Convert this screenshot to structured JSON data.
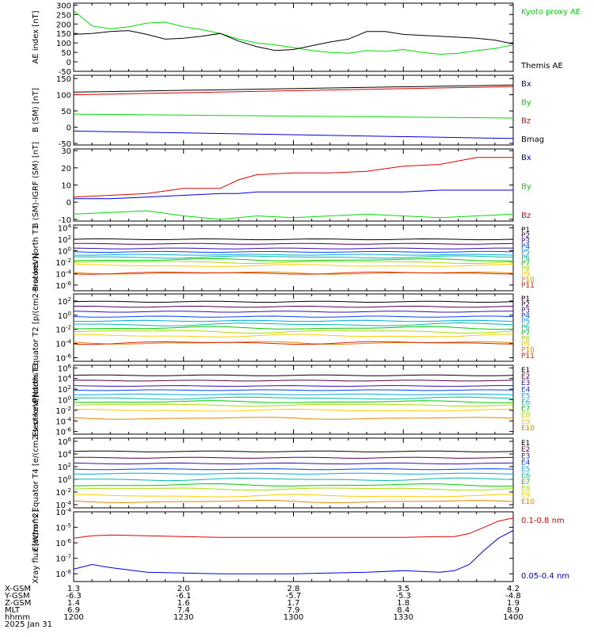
{
  "colors": {
    "black": "#000000",
    "green": "#00dd00",
    "red": "#dd0000",
    "blue": "#0000dd",
    "p_series": [
      "#000000",
      "#550055",
      "#3311aa",
      "#0044ff",
      "#00aadd",
      "#00bbaa",
      "#00cc00",
      "#aadd00",
      "#ffcc00",
      "#dd8800",
      "#dd2200",
      "#880000"
    ],
    "xray_red": "#dd0000",
    "xray_blue": "#0000dd"
  },
  "time_axis": {
    "x": [
      "1200",
      "1230",
      "1300",
      "1330",
      "1400"
    ],
    "footer": {
      "labels": [
        "X-GSM",
        "Y-GSM",
        "Z-GSM",
        "MLT",
        "hhmm",
        "2025 Jan 31"
      ],
      "x_gsm": [
        "1.3",
        "2.0",
        "2.8",
        "3.5",
        "4.2"
      ],
      "y_gsm": [
        "-6.3",
        "-6.1",
        "-5.7",
        "-5.3",
        "-4.8"
      ],
      "z_gsm": [
        "1.4",
        "1.6",
        "1.7",
        "1.8",
        "1.9"
      ],
      "mlt": [
        "6.9",
        "7.4",
        "7.9",
        "8.4",
        "8.9"
      ],
      "hhmm": [
        "1200",
        "1230",
        "1300",
        "1330",
        "1400"
      ]
    }
  },
  "chart_data": [
    {
      "type": "line",
      "name": "ae",
      "ylabel": "AE index [nT]",
      "yticks": [
        "300",
        "250",
        "200",
        "150",
        "100",
        "50",
        "0",
        "-50"
      ],
      "ylim": [
        -50,
        310
      ],
      "legend": [
        "Kyoto proxy AE",
        "Themis AE"
      ],
      "x": [
        0,
        5,
        10,
        15,
        20,
        25,
        30,
        35,
        40,
        45,
        50,
        55,
        60,
        65,
        70,
        75,
        80,
        85,
        90,
        95,
        100,
        105,
        110,
        115,
        120
      ],
      "series": [
        {
          "name": "Kyoto proxy AE",
          "color": "green",
          "values": [
            270,
            190,
            175,
            185,
            205,
            210,
            185,
            170,
            150,
            120,
            100,
            90,
            75,
            60,
            50,
            45,
            60,
            55,
            65,
            50,
            40,
            45,
            60,
            70,
            90
          ]
        },
        {
          "name": "Themis AE",
          "color": "black",
          "values": [
            145,
            150,
            160,
            165,
            145,
            120,
            125,
            135,
            150,
            110,
            80,
            60,
            65,
            85,
            105,
            120,
            160,
            160,
            145,
            140,
            135,
            130,
            125,
            115,
            95
          ]
        }
      ]
    },
    {
      "type": "line",
      "name": "b_sm",
      "ylabel": "B (SM) [nT]",
      "yticks": [
        "150",
        "100",
        "50",
        "0",
        "-50"
      ],
      "ylim": [
        -55,
        160
      ],
      "legend": [
        "Bx",
        "By",
        "Bz",
        "Bmag"
      ],
      "x": [
        0,
        120
      ],
      "series": [
        {
          "name": "Bx",
          "color": "blue",
          "values": [
            -12,
            -35
          ]
        },
        {
          "name": "By",
          "color": "green",
          "values": [
            40,
            28
          ]
        },
        {
          "name": "Bz",
          "color": "red",
          "values": [
            100,
            125
          ]
        },
        {
          "name": "Bmag",
          "color": "black",
          "values": [
            108,
            130
          ]
        }
      ]
    },
    {
      "type": "line",
      "name": "b_igrf",
      "ylabel": "B (SM)-IGRF (SM) [nT]",
      "yticks": [
        "30",
        "20",
        "10",
        "0",
        "-10"
      ],
      "ylim": [
        -11,
        31
      ],
      "legend": [
        "Bx",
        "By",
        "Bz"
      ],
      "x": [
        0,
        10,
        20,
        30,
        40,
        45,
        50,
        60,
        70,
        80,
        90,
        100,
        110,
        120
      ],
      "series": [
        {
          "name": "Bx",
          "color": "blue",
          "values": [
            2,
            2,
            3,
            4,
            5,
            5,
            6,
            6,
            6,
            6,
            6,
            7,
            7,
            7
          ]
        },
        {
          "name": "By",
          "color": "green",
          "values": [
            -7,
            -6,
            -5,
            -8,
            -10,
            -9,
            -8,
            -9,
            -8,
            -7,
            -8,
            -9,
            -8,
            -7
          ]
        },
        {
          "name": "Bz",
          "color": "red",
          "values": [
            3,
            4,
            5,
            8,
            8,
            13,
            16,
            17,
            17,
            18,
            21,
            22,
            26,
            26
          ]
        }
      ]
    },
    {
      "type": "line",
      "name": "protons_north",
      "ylabel": "Protons North T1",
      "yticks": [
        "10^4",
        "10^2",
        "10^0",
        "10^-2",
        "10^-4",
        "10^-6"
      ],
      "ylim_log10": [
        -7,
        4.5
      ],
      "legend": [
        "P1",
        "P2",
        "P3",
        "P4",
        "P5",
        "P6",
        "P7",
        "P8",
        "P9",
        "P10",
        "P11"
      ],
      "log10_levels": [
        2.0,
        1.2,
        0.4,
        -0.2,
        -0.7,
        -1.1,
        -1.6,
        -2.0,
        -2.6,
        -3.9,
        -3.9
      ]
    },
    {
      "type": "line",
      "name": "protons_equator",
      "ylabel": "Protons Equator T2 [p/(cm2-s-sr-keV)]",
      "yticks": [
        "10^2",
        "10^0",
        "10^-2",
        "10^-4",
        "10^-6"
      ],
      "ylim_log10": [
        -6.5,
        3
      ],
      "legend": [
        "P1",
        "P2",
        "P3",
        "P4",
        "P5",
        "P6",
        "P7",
        "P8",
        "P9",
        "P10",
        "P11"
      ],
      "log10_levels": [
        1.9,
        1.2,
        0.5,
        -0.2,
        -0.8,
        -1.3,
        -1.8,
        -2.3,
        -2.9,
        -3.9,
        -3.9
      ]
    },
    {
      "type": "line",
      "name": "electrons_north",
      "ylabel": "Electrons North T3",
      "yticks": [
        "10^6",
        "10^4",
        "10^2",
        "10^0",
        "10^-2",
        "10^-4",
        "10^-6"
      ],
      "ylim_log10": [
        -6.5,
        6.5
      ],
      "legend": [
        "E1",
        "E2",
        "E3",
        "E4",
        "E5",
        "E6",
        "E7",
        "E8",
        "E9",
        "E10"
      ],
      "log10_levels": [
        4.6,
        3.6,
        2.6,
        1.8,
        1.0,
        0.3,
        -0.4,
        -1.0,
        -2.0,
        -3.5
      ]
    },
    {
      "type": "line",
      "name": "electrons_equator",
      "ylabel": "Electrons Equator T4 [e/(cm2-s-sr-keV)]",
      "yticks": [
        "10^6",
        "10^4",
        "10^2",
        "10^0",
        "10^-2",
        "10^-4"
      ],
      "ylim_log10": [
        -4.5,
        6.5
      ],
      "legend": [
        "E1",
        "E2",
        "E3",
        "E4",
        "E5",
        "E6",
        "E7",
        "E8",
        "E9",
        "E10"
      ],
      "log10_levels": [
        4.4,
        3.4,
        2.5,
        1.6,
        0.9,
        0.0,
        -0.9,
        -1.5,
        -2.6,
        -3.5
      ]
    },
    {
      "type": "line",
      "name": "xray",
      "ylabel": "Xray flux [W/m^2]",
      "yticks": [
        "10^-4",
        "10^-5",
        "10^-6",
        "10^-7",
        "10^-8"
      ],
      "ylim_log10": [
        -8.5,
        -4
      ],
      "legend": [
        "0.1-0.8 nm",
        "0.05-0.4 nm"
      ],
      "x": [
        0,
        5,
        10,
        20,
        40,
        60,
        80,
        90,
        100,
        104,
        108,
        112,
        116,
        120
      ],
      "series": [
        {
          "name": "0.1-0.8 nm",
          "color": "xray_red",
          "values": [
            -5.7,
            -5.55,
            -5.5,
            -5.55,
            -5.65,
            -5.65,
            -5.65,
            -5.65,
            -5.6,
            -5.6,
            -5.4,
            -5.0,
            -4.6,
            -4.4
          ]
        },
        {
          "name": "0.05-0.4 nm",
          "color": "xray_blue",
          "values": [
            -7.7,
            -7.4,
            -7.6,
            -7.9,
            -8.0,
            -8.0,
            -7.9,
            -7.8,
            -7.9,
            -7.8,
            -7.4,
            -6.5,
            -5.7,
            -5.2
          ]
        }
      ]
    }
  ]
}
